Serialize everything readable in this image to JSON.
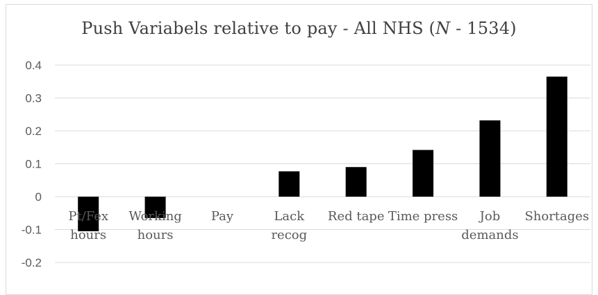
{
  "chart_data": {
    "type": "bar",
    "title_prefix": "Push Variabels relative to pay - All NHS (",
    "title_italic": "N",
    "title_suffix": " - 1534)",
    "categories": [
      [
        "Pt/Fex",
        "hours"
      ],
      [
        "Working",
        "hours"
      ],
      [
        "Pay"
      ],
      [
        "Lack",
        "recog"
      ],
      [
        "Red tape"
      ],
      [
        "Time press"
      ],
      [
        "Job",
        "demands"
      ],
      [
        "Shortages"
      ]
    ],
    "values": [
      -0.105,
      -0.065,
      0,
      0.077,
      0.09,
      0.142,
      0.232,
      0.365
    ],
    "yticks": [
      "0.4",
      "0.3",
      "0.2",
      "0.1",
      "0",
      "-0.1",
      "-0.2"
    ],
    "ylim": [
      -0.2,
      0.4
    ],
    "grid": true,
    "bar_color": "#000000",
    "grid_color": "#d9d9d9"
  }
}
